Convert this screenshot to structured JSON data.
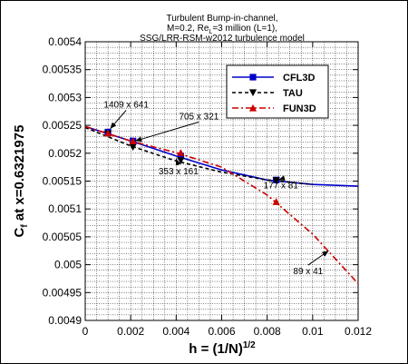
{
  "chart_data": {
    "type": "line",
    "title_lines": [
      "Turbulent Bump-in-channel,",
      "M=0.2, Re",
      "=3 million (L=1),",
      "SSG/LRR-RSM-w2012 turbulence model"
    ],
    "re_subscript": "L",
    "xlabel_main": "h = (1/N)",
    "xlabel_sup": "1/2",
    "ylabel_main": "C",
    "ylabel_sub": "f",
    "ylabel_rest": " at x=0.6321975",
    "xlim": [
      0,
      0.012
    ],
    "ylim": [
      0.0049,
      0.0054
    ],
    "x_ticks": [
      0,
      0.002,
      0.004,
      0.006,
      0.008,
      0.01,
      0.012
    ],
    "x_tick_labels": [
      "0",
      "0.002",
      "0.004",
      "0.006",
      "0.008",
      "0.01",
      "0.012"
    ],
    "y_ticks": [
      0.0049,
      0.00495,
      0.005,
      0.00505,
      0.0051,
      0.00515,
      0.0052,
      0.00525,
      0.0053,
      0.00535,
      0.0054
    ],
    "y_tick_labels": [
      "0.0049",
      "0.00495",
      "0.005",
      "0.00505",
      "0.0051",
      "0.00515",
      "0.0052",
      "0.00525",
      "0.0053",
      "0.00535",
      "0.0054"
    ],
    "grid": true,
    "legend_position": "top-right",
    "series": [
      {
        "name": "CFL3D",
        "color": "#0000cc",
        "dash": "solid",
        "marker": "square",
        "x": [
          0.001,
          0.0021,
          0.0042,
          0.0084
        ],
        "y": [
          0.005238,
          0.005222,
          0.005195,
          0.005152
        ],
        "curve_x": [
          0,
          0.002,
          0.004,
          0.006,
          0.008,
          0.01,
          0.012
        ],
        "curve_y": [
          0.005248,
          0.005222,
          0.005195,
          0.00517,
          0.005152,
          0.005144,
          0.005141
        ]
      },
      {
        "name": "TAU",
        "color": "#000000",
        "dash": "dashed",
        "marker": "triangle-down",
        "x": [
          0.001,
          0.0021,
          0.0042,
          0.0084
        ],
        "y": [
          0.005235,
          0.005211,
          0.005187,
          0.005151
        ],
        "curve_x": [
          0,
          0.002,
          0.004,
          0.006,
          0.008,
          0.01
        ],
        "curve_y": [
          0.005246,
          0.005213,
          0.005186,
          0.005166,
          0.005152,
          0.005144
        ]
      },
      {
        "name": "FUN3D",
        "color": "#cc0000",
        "dash": "dashdot",
        "marker": "triangle-up",
        "x": [
          0.001,
          0.0021,
          0.0042,
          0.0084
        ],
        "y": [
          0.005236,
          0.005222,
          0.005201,
          0.005113
        ],
        "curve_x": [
          0,
          0.002,
          0.004,
          0.006,
          0.008,
          0.01,
          0.012
        ],
        "curve_y": [
          0.005248,
          0.005222,
          0.005201,
          0.005175,
          0.005125,
          0.005055,
          0.004966
        ]
      }
    ],
    "annotations": [
      {
        "text": "1409 x 641",
        "tx": 0.0018,
        "ty": 0.005282,
        "ax": 0.0011,
        "ay": 0.005244
      },
      {
        "text": "705 x 321",
        "tx": 0.005,
        "ty": 0.005261,
        "ax": 0.0022,
        "ay": 0.005222
      },
      {
        "text": "353 x 161",
        "tx": 0.0041,
        "ty": 0.005162,
        "ax": 0.004,
        "ay": 0.00519
      },
      {
        "text": "177 x 81",
        "tx": 0.0086,
        "ty": 0.005137,
        "ax": 0.0085,
        "ay": 0.005152
      },
      {
        "text": "89 x 41",
        "tx": 0.0098,
        "ty": 0.004983,
        "ax": 0.0107,
        "ay": 0.005025
      }
    ]
  }
}
